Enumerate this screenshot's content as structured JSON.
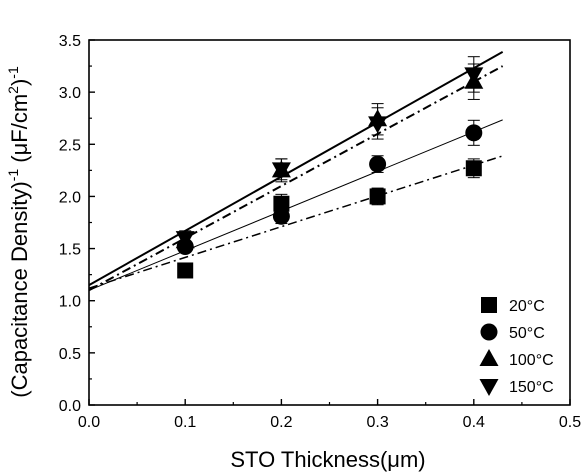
{
  "chart_data": {
    "type": "scatter",
    "xlabel": "STO Thickness(μm)",
    "ylabel_main": "(Capacitance Density)",
    "ylabel_exp1": "-1",
    "ylabel_unit": " (μF/cm",
    "ylabel_exp2": "2",
    "ylabel_close": ")",
    "ylabel_exp3": "-1",
    "xlim": [
      0.0,
      0.5
    ],
    "ylim": [
      0.0,
      3.5
    ],
    "xticks": [
      "0.0",
      "0.1",
      "0.2",
      "0.3",
      "0.4",
      "0.5"
    ],
    "yticks": [
      "0.0",
      "0.5",
      "1.0",
      "1.5",
      "2.0",
      "2.5",
      "3.0",
      "3.5"
    ],
    "legend_position": "bottom-right",
    "series": [
      {
        "name": "20°C",
        "marker": "square",
        "x": [
          0.1,
          0.2,
          0.3,
          0.4
        ],
        "y": [
          1.29,
          1.93,
          2.0,
          2.27
        ],
        "err": [
          0.04,
          0.09,
          0.08,
          0.09
        ],
        "fit": {
          "intercept": 1.12,
          "slope": 2.95,
          "x_end": 0.43,
          "style": "dashdot",
          "width": 1.5
        }
      },
      {
        "name": "50°C",
        "marker": "circle",
        "x": [
          0.1,
          0.2,
          0.3,
          0.4
        ],
        "y": [
          1.52,
          1.81,
          2.31,
          2.61
        ],
        "err": [
          0.05,
          0.07,
          0.08,
          0.12
        ],
        "fit": {
          "intercept": 1.1,
          "slope": 3.8,
          "x_end": 0.43,
          "style": "solid",
          "width": 1
        }
      },
      {
        "name": "100°C",
        "marker": "triangle-up",
        "x": [
          0.1,
          0.2,
          0.3,
          0.4
        ],
        "y": [
          1.57,
          2.25,
          2.74,
          3.1
        ],
        "err": [
          0.07,
          0.11,
          0.15,
          0.17
        ],
        "fit": {
          "intercept": 1.15,
          "slope": 5.2,
          "x_end": 0.43,
          "style": "solid",
          "width": 2
        }
      },
      {
        "name": "150°C",
        "marker": "triangle-down",
        "x": [
          0.1,
          0.2,
          0.3,
          0.4
        ],
        "y": [
          1.6,
          2.26,
          2.7,
          3.17
        ],
        "err": [
          0.07,
          0.1,
          0.15,
          0.17
        ],
        "fit": {
          "intercept": 1.1,
          "slope": 5.0,
          "x_end": 0.43,
          "style": "dashdot",
          "width": 2
        }
      }
    ]
  }
}
